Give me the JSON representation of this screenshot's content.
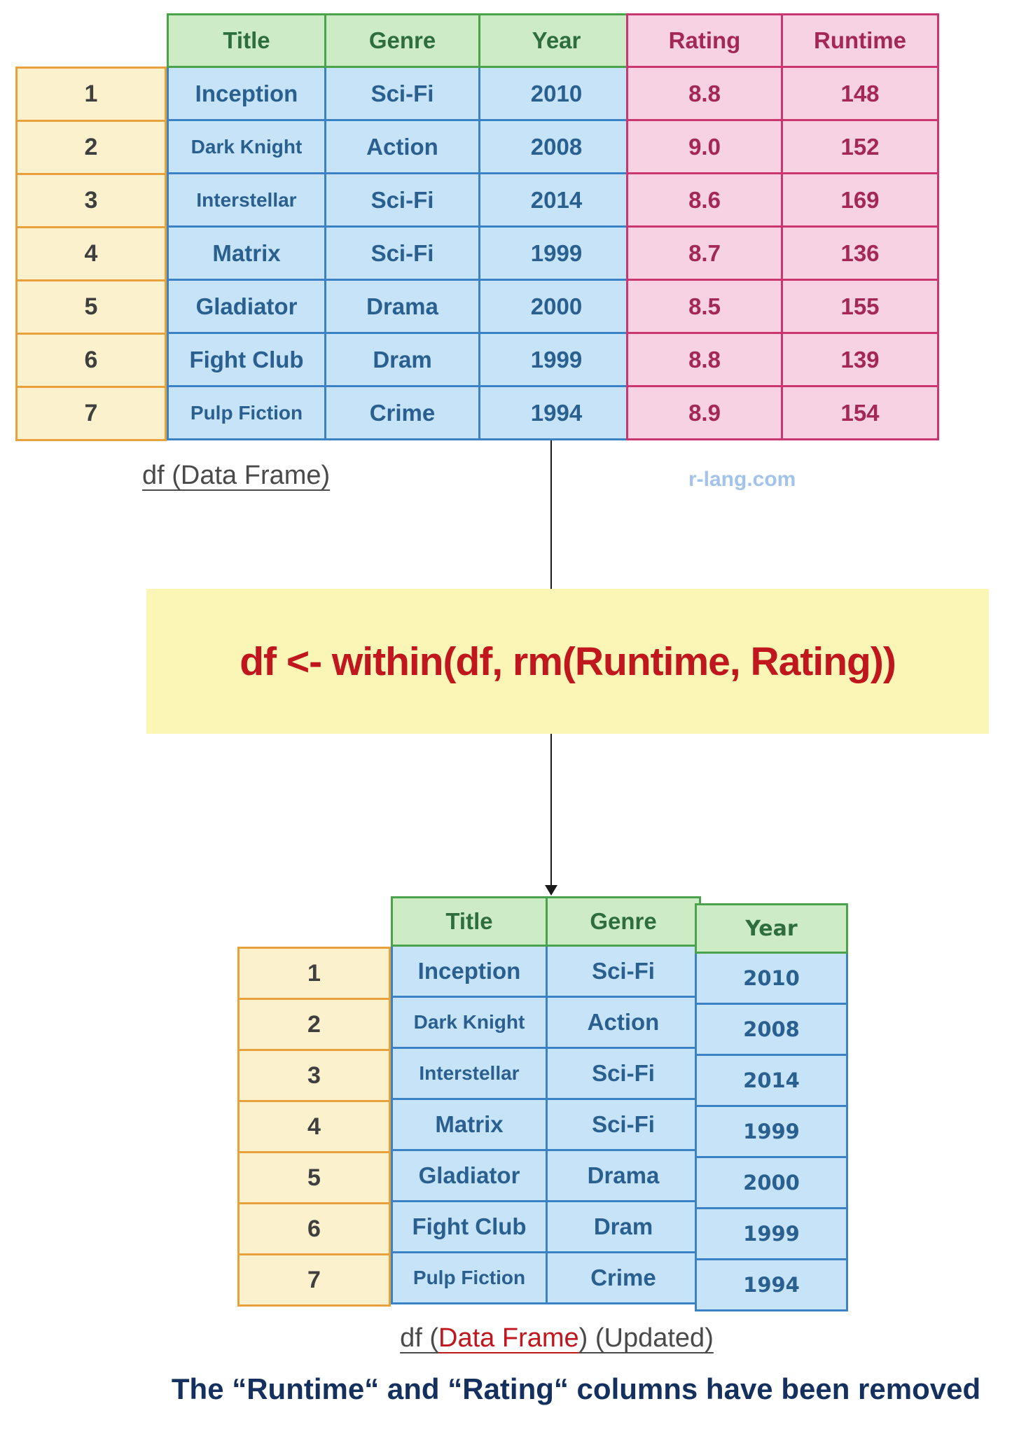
{
  "watermark": "r-lang.com",
  "code_box": {
    "code": "df <- within(df, rm(Runtime, Rating))"
  },
  "top_table_label": "df (Data Frame)",
  "bottom_table_label": {
    "prefix": "df (",
    "highlight": "Data Frame",
    "suffix": ") (Updated)"
  },
  "footer": {
    "text": "The “Runtime“ and “Rating“ columns have been removed"
  },
  "colors": {
    "header_green_bg": "#cdecc6",
    "header_green_border": "#4aa34c",
    "header_green_text": "#2d6e3c",
    "cell_blue_bg": "#c6e3f8",
    "cell_blue_border": "#3b82c4",
    "cell_blue_text": "#29608f",
    "removed_pink_bg": "#f6d2e2",
    "removed_pink_border": "#cb3670",
    "removed_pink_text": "#a32757",
    "index_yellow_bg": "#fbf1cd",
    "index_orange_border": "#e7a23e",
    "index_text": "#3f3f3f",
    "code_box_bg": "#fbf6b5",
    "code_text": "#c0161d",
    "watermark_text": "#a3c4ea",
    "label_text": "#4a4a4a",
    "footer_text": "#14305e",
    "arrow": "#1a1a1a"
  },
  "tables": {
    "top_index": {
      "rows": [
        [
          "1"
        ],
        [
          "2"
        ],
        [
          "3"
        ],
        [
          "4"
        ],
        [
          "5"
        ],
        [
          "6"
        ],
        [
          "7"
        ]
      ]
    },
    "top_main": {
      "headers": [
        "Title",
        "Genre",
        "Year"
      ],
      "rows": [
        [
          "Inception",
          "Sci-Fi",
          "2010"
        ],
        [
          "Dark Knight",
          "Action",
          "2008"
        ],
        [
          "Interstellar",
          "Sci-Fi",
          "2014"
        ],
        [
          "Matrix",
          "Sci-Fi",
          "1999"
        ],
        [
          "Gladiator",
          "Drama",
          "2000"
        ],
        [
          "Fight Club",
          "Dram",
          "1999"
        ],
        [
          "Pulp Fiction",
          "Crime",
          "1994"
        ]
      ]
    },
    "top_pink": {
      "headers": [
        "Rating",
        "Runtime"
      ],
      "rows": [
        [
          "8.8",
          "148"
        ],
        [
          "9.0",
          "152"
        ],
        [
          "8.6",
          "169"
        ],
        [
          "8.7",
          "136"
        ],
        [
          "8.5",
          "155"
        ],
        [
          "8.8",
          "139"
        ],
        [
          "8.9",
          "154"
        ]
      ]
    },
    "bot_index": {
      "rows": [
        [
          "1"
        ],
        [
          "2"
        ],
        [
          "3"
        ],
        [
          "4"
        ],
        [
          "5"
        ],
        [
          "6"
        ],
        [
          "7"
        ]
      ]
    },
    "bot_main": {
      "headers": [
        "Title",
        "Genre"
      ],
      "rows": [
        [
          "Inception",
          "Sci-Fi"
        ],
        [
          "Dark Knight",
          "Action"
        ],
        [
          "Interstellar",
          "Sci-Fi"
        ],
        [
          "Matrix",
          "Sci-Fi"
        ],
        [
          "Gladiator",
          "Drama"
        ],
        [
          "Fight Club",
          "Dram"
        ],
        [
          "Pulp Fiction",
          "Crime"
        ]
      ]
    },
    "bot_year": {
      "headers": [
        "Year"
      ],
      "rows": [
        [
          "2010"
        ],
        [
          "2008"
        ],
        [
          "2014"
        ],
        [
          "1999"
        ],
        [
          "2000"
        ],
        [
          "1999"
        ],
        [
          "1994"
        ]
      ]
    }
  }
}
